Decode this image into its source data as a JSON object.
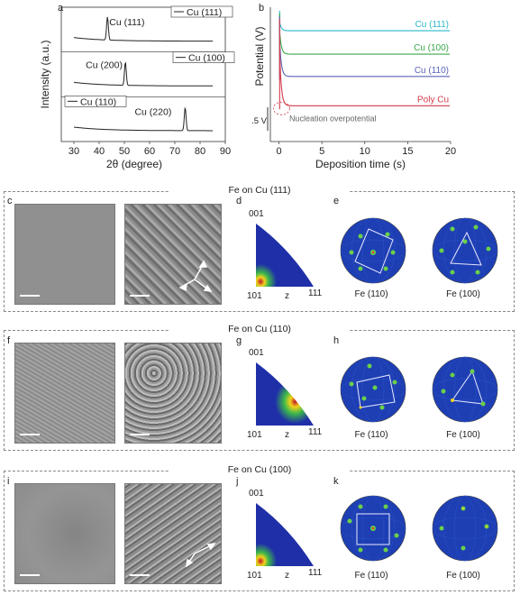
{
  "panel_labels": {
    "a": "a",
    "b": "b",
    "c": "c",
    "d": "d",
    "e": "e",
    "f": "f",
    "g": "g",
    "h": "h",
    "i": "i",
    "j": "j",
    "k": "k"
  },
  "sections": [
    {
      "title": "Fe on Cu (111)"
    },
    {
      "title": "Fe on Cu (110)"
    },
    {
      "title": "Fe on Cu (100)"
    }
  ],
  "ipf": {
    "top": "001",
    "left": "101",
    "mid": "z",
    "right": "111"
  },
  "pole_figures": {
    "left": "Fe (110)",
    "right": "Fe (100)"
  },
  "chart_data": [
    {
      "type": "line",
      "xlabel": "2θ (degree)",
      "ylabel": "Intensity (a.u.)",
      "xlim": [
        25,
        90
      ],
      "xticks": [
        30,
        40,
        50,
        60,
        70,
        80,
        90
      ],
      "series": [
        {
          "name": "Cu (111)",
          "peak_label": "Cu (111)",
          "peak_x": 43.3
        },
        {
          "name": "Cu (100)",
          "peak_label": "Cu (200)",
          "peak_x": 50.4
        },
        {
          "name": "Cu (110)",
          "peak_label": "Cu (220)",
          "peak_x": 74.1
        }
      ]
    },
    {
      "type": "line",
      "xlabel": "Deposition time (s)",
      "ylabel": "Potential (V)",
      "xlim": [
        -1,
        20
      ],
      "xticks": [
        0,
        5,
        10,
        15,
        20
      ],
      "scale_label": "0.5 V",
      "annotation": "Nucleation overpotential",
      "series": [
        {
          "name": "Cu (111)",
          "color": "#2ab7c9",
          "plateau": 4.15
        },
        {
          "name": "Cu (100)",
          "color": "#3aa84a",
          "plateau": 3.15
        },
        {
          "name": "Cu (110)",
          "color": "#5a63b8",
          "plateau": 2.2
        },
        {
          "name": "Poly Cu",
          "color": "#d23a4a",
          "plateau": 0.95
        }
      ]
    }
  ]
}
